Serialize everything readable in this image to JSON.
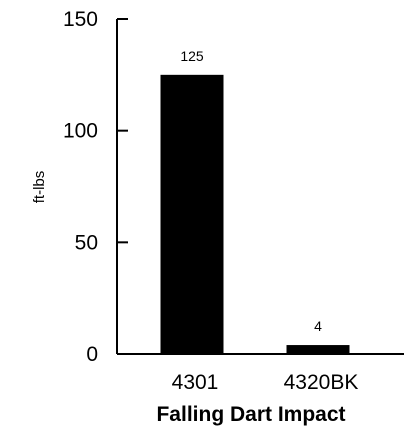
{
  "chart_data": {
    "type": "bar",
    "categories": [
      "4301",
      "4320BK"
    ],
    "values": [
      125,
      4
    ],
    "data_labels": [
      "125",
      "4"
    ],
    "xlabel": "Falling Dart Impact",
    "ylabel": "ft-lbs",
    "ylim": [
      0,
      150
    ],
    "yticks": [
      0,
      50,
      100,
      150
    ],
    "ytick_labels": [
      "0",
      "50",
      "100",
      "150"
    ],
    "grid": false,
    "legend": "none",
    "colors": {
      "bar": "#000000",
      "axis": "#000000",
      "background": "#ffffff"
    }
  }
}
